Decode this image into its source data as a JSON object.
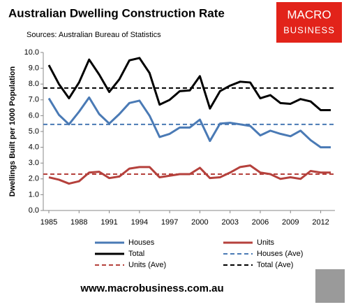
{
  "chart_data": {
    "type": "line",
    "title": "Australian Dwelling Construction Rate",
    "subtitle": "Sources: Australian Bureau of Statistics",
    "y_label": "Dwellings Built per 1000 Population",
    "x": [
      1985,
      1986,
      1987,
      1988,
      1989,
      1990,
      1991,
      1992,
      1993,
      1994,
      1995,
      1996,
      1997,
      1998,
      1999,
      2000,
      2001,
      2002,
      2003,
      2004,
      2005,
      2006,
      2007,
      2008,
      2009,
      2010,
      2011,
      2012,
      2013
    ],
    "series": [
      {
        "name": "Houses",
        "color": "#4a7ab5",
        "values": [
          7.1,
          6.05,
          5.45,
          6.25,
          7.15,
          6.1,
          5.5,
          6.1,
          6.8,
          6.95,
          6.0,
          4.65,
          4.85,
          5.25,
          5.25,
          5.75,
          4.4,
          5.5,
          5.55,
          5.45,
          5.35,
          4.75,
          5.05,
          4.85,
          4.7,
          5.05,
          4.45,
          4.0,
          4.0
        ]
      },
      {
        "name": "Units",
        "color": "#b5413c",
        "values": [
          2.1,
          1.95,
          1.7,
          1.85,
          2.4,
          2.45,
          2.05,
          2.15,
          2.65,
          2.75,
          2.75,
          2.1,
          2.2,
          2.3,
          2.3,
          2.7,
          2.05,
          2.1,
          2.4,
          2.75,
          2.85,
          2.4,
          2.3,
          2.0,
          2.1,
          2.0,
          2.5,
          2.4,
          2.4
        ]
      },
      {
        "name": "Total",
        "color": "#000000",
        "values": [
          9.2,
          8.0,
          7.1,
          8.1,
          9.55,
          8.6,
          7.5,
          8.3,
          9.5,
          9.65,
          8.7,
          6.7,
          7.0,
          7.55,
          7.6,
          8.5,
          6.45,
          7.55,
          7.9,
          8.15,
          8.1,
          7.1,
          7.3,
          6.8,
          6.75,
          7.05,
          6.9,
          6.35,
          6.35
        ]
      }
    ],
    "reference_lines": [
      {
        "name": "Houses (Ave)",
        "color": "#4a7ab5",
        "value": 5.45
      },
      {
        "name": "Units (Ave)",
        "color": "#b5413c",
        "value": 2.3
      },
      {
        "name": "Total (Ave)",
        "color": "#000000",
        "value": 7.75
      }
    ],
    "xlim": [
      1985,
      2013
    ],
    "xticks": [
      1985,
      1988,
      1991,
      1994,
      1997,
      2000,
      2003,
      2006,
      2009,
      2012
    ],
    "ylim": [
      0,
      10
    ],
    "yticks": [
      {
        "value": 0,
        "label": "0.0"
      },
      {
        "value": 1,
        "label": "1.0"
      },
      {
        "value": 2,
        "label": "2.0"
      },
      {
        "value": 3,
        "label": "3.0"
      },
      {
        "value": 4,
        "label": "4.0"
      },
      {
        "value": 5,
        "label": "5.0"
      },
      {
        "value": 6,
        "label": "6.0"
      },
      {
        "value": 7,
        "label": "7.0"
      },
      {
        "value": 8,
        "label": "8.0"
      },
      {
        "value": 9,
        "label": "9.0"
      },
      {
        "value": 10,
        "label": "10.0"
      }
    ],
    "legend": "bottom"
  },
  "logo": {
    "line1": "MACRO",
    "line2": "BUSINESS"
  },
  "footer": "www.macrobusiness.com.au"
}
